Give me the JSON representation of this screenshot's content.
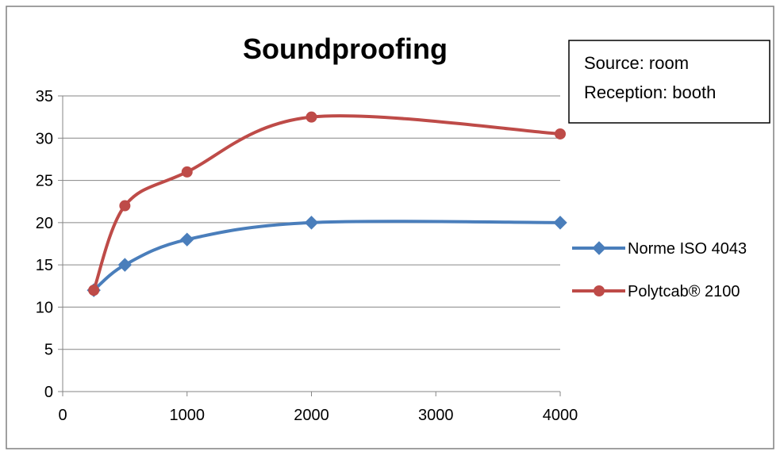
{
  "chart_data": {
    "type": "line",
    "title": "Soundproofing",
    "annotation": [
      "Source: room",
      "Reception: booth"
    ],
    "xlabel": "",
    "ylabel": "",
    "xlim": [
      0,
      4000
    ],
    "ylim": [
      0,
      35
    ],
    "x_ticks": [
      0,
      1000,
      2000,
      3000,
      4000
    ],
    "y_ticks": [
      0,
      5,
      10,
      15,
      20,
      25,
      30,
      35
    ],
    "grid": true,
    "legend_position": "right",
    "series": [
      {
        "name": "Norme ISO 4043",
        "color": "#4a7ebb",
        "marker": "diamond",
        "x": [
          250,
          500,
          1000,
          2000,
          4000
        ],
        "y": [
          12,
          15,
          18,
          20,
          20
        ]
      },
      {
        "name": "Polytcab® 2100",
        "color": "#be4b48",
        "marker": "circle",
        "x": [
          250,
          500,
          1000,
          2000,
          4000
        ],
        "y": [
          12,
          22,
          26,
          32.5,
          30.5
        ]
      }
    ]
  }
}
